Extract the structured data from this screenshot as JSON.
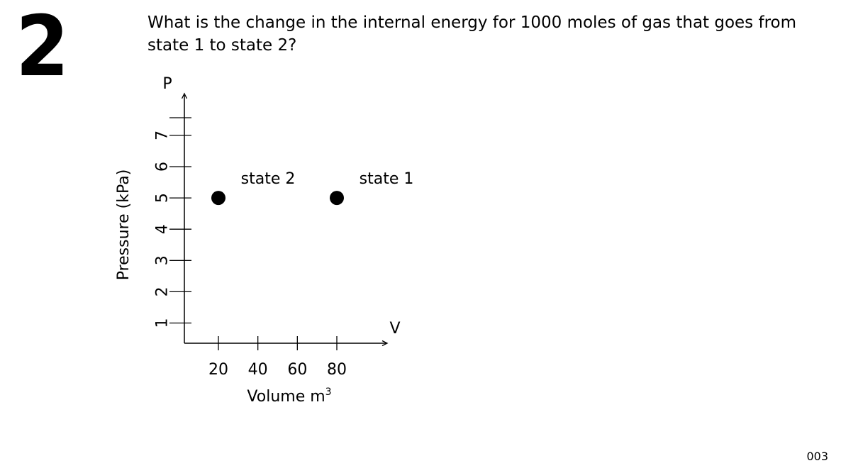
{
  "slide": {
    "number": "2",
    "question": "What is the change in the internal energy for 1000 moles of gas that goes from state 1 to state 2?",
    "page_number": "003"
  },
  "chart_data": {
    "type": "scatter",
    "ylabel": "Pressure (kPa)",
    "y_axis_letter": "P",
    "x_axis_letter": "V",
    "xlabel_base": "Volume m",
    "xlabel_superscript": "3",
    "y_ticks": [
      1,
      2,
      3,
      4,
      5,
      6,
      7
    ],
    "y_tick_labels": [
      "1",
      "2",
      "3",
      "4",
      "5",
      "6",
      "7"
    ],
    "x_ticks": [
      20,
      40,
      60,
      80
    ],
    "x_tick_labels": [
      "20",
      "40",
      "60",
      "80"
    ],
    "points": [
      {
        "label": "state 2",
        "x": 20,
        "y": 5
      },
      {
        "label": "state 1",
        "x": 80,
        "y": 5
      }
    ],
    "grid": false,
    "legend": "none"
  }
}
